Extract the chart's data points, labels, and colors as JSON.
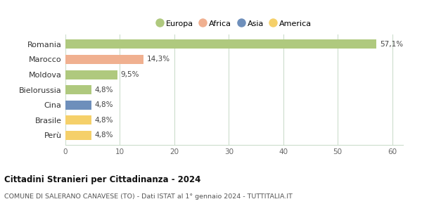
{
  "categories": [
    "Romania",
    "Marocco",
    "Moldova",
    "Bielorussia",
    "Cina",
    "Brasile",
    "Perù"
  ],
  "values": [
    57.1,
    14.3,
    9.5,
    4.8,
    4.8,
    4.8,
    4.8
  ],
  "labels": [
    "57,1%",
    "14,3%",
    "9,5%",
    "4,8%",
    "4,8%",
    "4,8%",
    "4,8%"
  ],
  "colors": [
    "#afc97e",
    "#f0b090",
    "#afc97e",
    "#afc97e",
    "#6e8fbb",
    "#f5d06a",
    "#f5d06a"
  ],
  "legend_labels": [
    "Europa",
    "Africa",
    "Asia",
    "America"
  ],
  "legend_colors": [
    "#afc97e",
    "#f0b090",
    "#6e8fbb",
    "#f5d06a"
  ],
  "xlim": [
    0,
    62
  ],
  "xticks": [
    0,
    10,
    20,
    30,
    40,
    50,
    60
  ],
  "title": "Cittadini Stranieri per Cittadinanza - 2024",
  "subtitle": "COMUNE DI SALERANO CANAVESE (TO) - Dati ISTAT al 1° gennaio 2024 - TUTTITALIA.IT",
  "bg_color": "#ffffff",
  "grid_color": "#ccddcc",
  "bar_height": 0.6
}
